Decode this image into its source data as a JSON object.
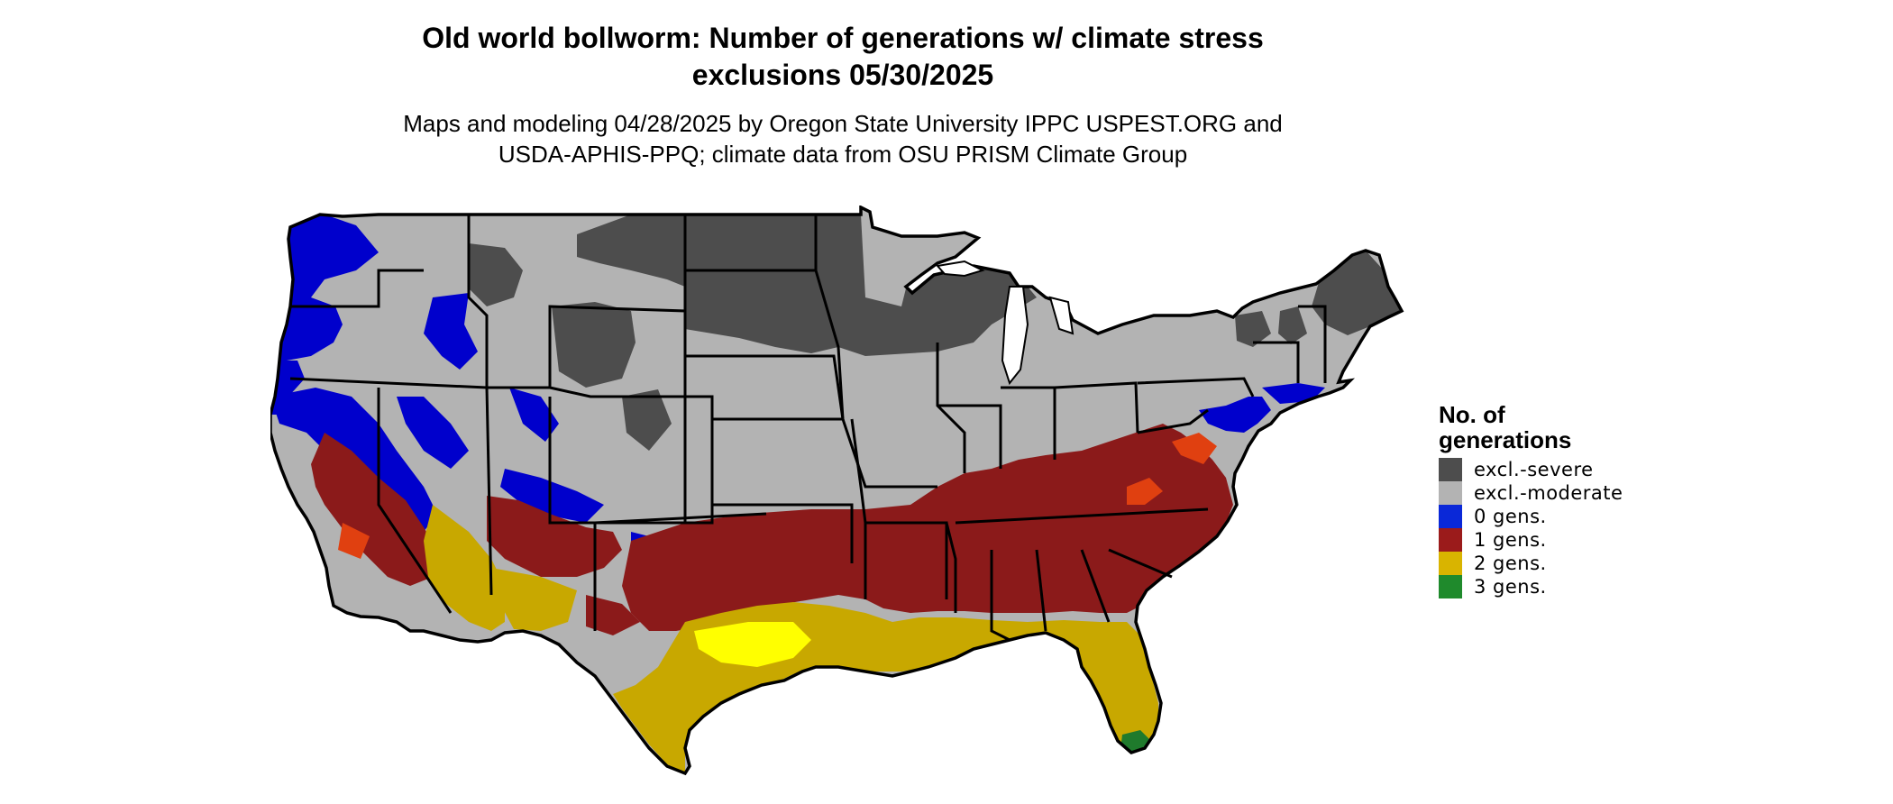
{
  "title_line1": "Old world bollworm: Number of generations w/ climate stress",
  "title_line2": "exclusions 05/30/2025",
  "subtitle_line1": "Maps and modeling 04/28/2025 by Oregon State University IPPC USPEST.ORG and",
  "subtitle_line2": "USDA-APHIS-PPQ; climate data from OSU PRISM Climate Group",
  "legend": {
    "title_line1": "No. of",
    "title_line2": "generations",
    "items": [
      {
        "label": "excl.-severe",
        "color": "#4d4d4d"
      },
      {
        "label": "excl.-moderate",
        "color": "#b3b3b3"
      },
      {
        "label": "0 gens.",
        "color": "#0a28d8"
      },
      {
        "label": "1 gens.",
        "color": "#9b1b1b"
      },
      {
        "label": "2 gens.",
        "color": "#d9b400"
      },
      {
        "label": "3 gens.",
        "color": "#1f8a2c"
      }
    ]
  },
  "map": {
    "region": "contiguous-united-states",
    "colors": {
      "excl_severe": "#4d4d4d",
      "excl_moderate": "#b3b3b3",
      "gens_0": "#0000cc",
      "gens_1": "#8b1a1a",
      "gens_1_hot": "#e04010",
      "gens_2": "#c8a800",
      "gens_2_light": "#ffff00",
      "gens_3": "#1f7a2c",
      "gens_3_light": "#7fcf6f",
      "border": "#000000"
    }
  }
}
